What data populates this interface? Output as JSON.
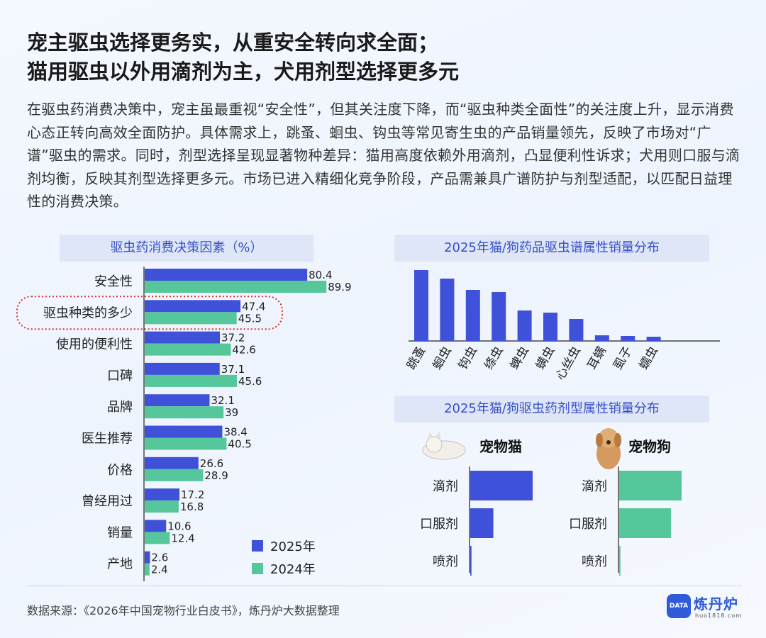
{
  "title_line1": "宠主驱虫选择更务实，从重安全转向求全面；",
  "title_line2": "猫用驱虫以外用滴剂为主，犬用剂型选择更多元",
  "intro": "在驱虫药消费决策中，宠主虽最重视“安全性”，但其关注度下降，而“驱虫种类全面性”的关注度上升，显示消费心态正转向高效全面防护。具体需求上，跳蚤、蛔虫、钩虫等常见寄生虫的产品销量领先，反映了市场对“广谱”驱虫的需求。同时，剂型选择呈现显著物种差异：猫用高度依赖外用滴剂，凸显便利性诉求；犬用则口服与滴剂均衡，反映其剂型选择更多元。市场已进入精细化竞争阶段，产品需兼具广谱防护与剂型适配，以匹配日益理性的消费决策。",
  "colors": {
    "blue": "#3f51d8",
    "green": "#55c79b",
    "highlight": "#d9302e"
  },
  "chart_data": [
    {
      "type": "bar",
      "orientation": "horizontal",
      "title": "驱虫药消费决策因素（%）",
      "categories": [
        "安全性",
        "驱虫种类的多少",
        "使用的便利性",
        "口碑",
        "品牌",
        "医生推荐",
        "价格",
        "曾经用过",
        "销量",
        "产地"
      ],
      "series": [
        {
          "name": "2025年",
          "values": [
            80.4,
            47.4,
            37.2,
            37.1,
            32.1,
            38.4,
            26.6,
            17.2,
            10.6,
            2.6
          ]
        },
        {
          "name": "2024年",
          "values": [
            89.9,
            45.5,
            42.6,
            45.6,
            39,
            40.5,
            28.9,
            16.8,
            12.4,
            2.4
          ]
        }
      ],
      "value_labels": [
        [
          "80.4",
          "47.4",
          "37.2",
          "37.1",
          "32.1",
          "38.4",
          "26.6",
          "17.2",
          "10.6",
          "2.6"
        ],
        [
          "89.9",
          "45.5",
          "42.6",
          "45.6",
          "39",
          "40.5",
          "28.9",
          "16.8",
          "12.4",
          "2.4"
        ]
      ],
      "highlighted_category": "驱虫种类的多少",
      "legend_position": "bottom-right",
      "xlim": [
        0,
        100
      ]
    },
    {
      "type": "bar",
      "title": "2025年猫/狗药品驱虫谱属性销量分布",
      "categories": [
        "跳蚤",
        "蛔虫",
        "钩虫",
        "绦虫",
        "蜱虫",
        "螨虫",
        "心丝虫",
        "耳螨",
        "虱子",
        "蠕虫"
      ],
      "values": [
        100,
        88,
        72,
        69,
        43,
        40,
        31,
        8,
        7,
        6
      ],
      "note": "no value axis shown; relative heights estimated on a 0-100 scale"
    },
    {
      "type": "bar",
      "orientation": "horizontal",
      "title": "2025年猫/狗驱虫药剂型属性销量分布",
      "panels": [
        {
          "name": "宠物猫",
          "icon": "cat-photo",
          "categories": [
            "滴剂",
            "口服剂",
            "喷剂"
          ],
          "values": [
            100,
            37,
            2
          ]
        },
        {
          "name": "宠物狗",
          "icon": "dog-photo",
          "categories": [
            "滴剂",
            "口服剂",
            "喷剂"
          ],
          "values": [
            100,
            83,
            2
          ]
        }
      ],
      "note": "no value axis shown; relative lengths estimated on a 0-100 scale"
    }
  ],
  "source": "数据来源：《2026年中国宠物行业白皮书》，炼丹炉大数据整理",
  "logo": {
    "name": "炼丹炉",
    "url": "huo1818.com",
    "badge": "DATA"
  }
}
